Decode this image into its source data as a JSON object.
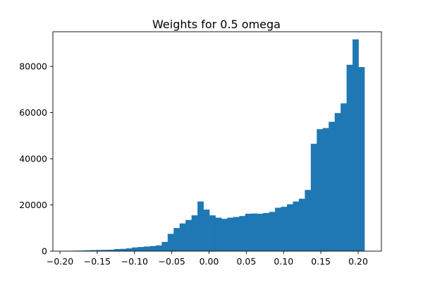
{
  "chart_data": {
    "type": "bar",
    "subtype": "histogram",
    "title": "Weights for 0.5 omega",
    "xlabel": "",
    "ylabel": "",
    "xlim": [
      -0.2,
      0.2
    ],
    "ylim": [
      0,
      95000
    ],
    "grid": false,
    "legend": "none",
    "bar_color": "#1f77b4",
    "x_ticks": [
      -0.2,
      -0.15,
      -0.1,
      -0.05,
      0.0,
      0.05,
      0.1,
      0.15,
      0.2
    ],
    "x_tick_labels": [
      "−0.20",
      "−0.15",
      "−0.10",
      "−0.05",
      "0.00",
      "0.05",
      "0.10",
      "0.15",
      "0.20"
    ],
    "y_ticks": [
      0,
      20000,
      40000,
      60000,
      80000
    ],
    "y_tick_labels": [
      "0",
      "20000",
      "40000",
      "60000",
      "80000"
    ],
    "bins": [
      {
        "x0": -0.1915,
        "x1": -0.1835,
        "count": 150
      },
      {
        "x0": -0.1835,
        "x1": -0.1755,
        "count": 200
      },
      {
        "x0": -0.1755,
        "x1": -0.1675,
        "count": 250
      },
      {
        "x0": -0.1675,
        "x1": -0.1595,
        "count": 350
      },
      {
        "x0": -0.1595,
        "x1": -0.1515,
        "count": 450
      },
      {
        "x0": -0.1515,
        "x1": -0.1435,
        "count": 500
      },
      {
        "x0": -0.1435,
        "x1": -0.1355,
        "count": 550
      },
      {
        "x0": -0.1355,
        "x1": -0.1275,
        "count": 600
      },
      {
        "x0": -0.1275,
        "x1": -0.1195,
        "count": 900
      },
      {
        "x0": -0.1195,
        "x1": -0.1115,
        "count": 1000
      },
      {
        "x0": -0.1115,
        "x1": -0.1035,
        "count": 1200
      },
      {
        "x0": -0.1035,
        "x1": -0.0955,
        "count": 1600
      },
      {
        "x0": -0.0955,
        "x1": -0.0875,
        "count": 1800
      },
      {
        "x0": -0.0875,
        "x1": -0.0795,
        "count": 2000
      },
      {
        "x0": -0.0795,
        "x1": -0.0715,
        "count": 2200
      },
      {
        "x0": -0.0715,
        "x1": -0.0635,
        "count": 2500
      },
      {
        "x0": -0.0635,
        "x1": -0.0555,
        "count": 4000
      },
      {
        "x0": -0.0555,
        "x1": -0.0475,
        "count": 7500
      },
      {
        "x0": -0.0475,
        "x1": -0.0395,
        "count": 10000
      },
      {
        "x0": -0.0395,
        "x1": -0.0315,
        "count": 12000
      },
      {
        "x0": -0.0315,
        "x1": -0.0235,
        "count": 13500
      },
      {
        "x0": -0.0235,
        "x1": -0.0155,
        "count": 15500
      },
      {
        "x0": -0.0155,
        "x1": -0.0075,
        "count": 21500
      },
      {
        "x0": -0.0075,
        "x1": 0.0005,
        "count": 18000
      },
      {
        "x0": 0.0005,
        "x1": 0.0085,
        "count": 15500
      },
      {
        "x0": 0.0085,
        "x1": 0.0165,
        "count": 14500
      },
      {
        "x0": 0.0165,
        "x1": 0.0245,
        "count": 14000
      },
      {
        "x0": 0.0245,
        "x1": 0.0325,
        "count": 14500
      },
      {
        "x0": 0.0325,
        "x1": 0.0405,
        "count": 14800
      },
      {
        "x0": 0.0405,
        "x1": 0.0485,
        "count": 15200
      },
      {
        "x0": 0.0485,
        "x1": 0.0565,
        "count": 16200
      },
      {
        "x0": 0.0565,
        "x1": 0.0645,
        "count": 16300
      },
      {
        "x0": 0.0645,
        "x1": 0.0725,
        "count": 16200
      },
      {
        "x0": 0.0725,
        "x1": 0.0805,
        "count": 16500
      },
      {
        "x0": 0.0805,
        "x1": 0.0885,
        "count": 17000
      },
      {
        "x0": 0.0885,
        "x1": 0.0965,
        "count": 18800
      },
      {
        "x0": 0.0965,
        "x1": 0.1045,
        "count": 19200
      },
      {
        "x0": 0.1045,
        "x1": 0.1125,
        "count": 20300
      },
      {
        "x0": 0.1125,
        "x1": 0.1205,
        "count": 21500
      },
      {
        "x0": 0.1205,
        "x1": 0.1285,
        "count": 22700
      },
      {
        "x0": 0.1285,
        "x1": 0.1365,
        "count": 26500
      },
      {
        "x0": 0.1365,
        "x1": 0.1445,
        "count": 46500
      },
      {
        "x0": 0.1445,
        "x1": 0.1525,
        "count": 52800
      },
      {
        "x0": 0.1525,
        "x1": 0.1605,
        "count": 53300
      },
      {
        "x0": 0.1605,
        "x1": 0.1685,
        "count": 56000
      },
      {
        "x0": 0.1685,
        "x1": 0.1765,
        "count": 59800
      },
      {
        "x0": 0.1765,
        "x1": 0.1845,
        "count": 64000
      },
      {
        "x0": 0.1845,
        "x1": 0.1925,
        "count": 80700
      },
      {
        "x0": 0.1925,
        "x1": 0.2005,
        "count": 91700
      },
      {
        "x0": 0.2005,
        "x1": 0.2085,
        "count": 79700
      }
    ]
  }
}
